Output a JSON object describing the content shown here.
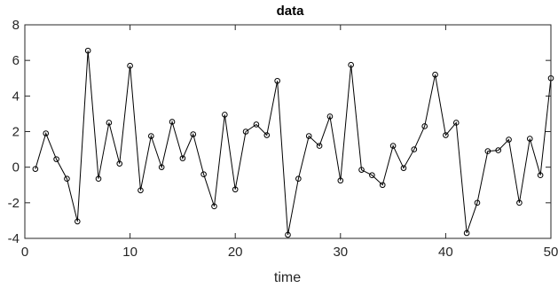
{
  "chart_data": {
    "type": "line",
    "title": "data",
    "xlabel": "time",
    "ylabel": "",
    "xlim": [
      0,
      50
    ],
    "ylim": [
      -4,
      8
    ],
    "xticks": [
      0,
      10,
      20,
      30,
      40,
      50
    ],
    "yticks": [
      -4,
      -2,
      0,
      2,
      4,
      6,
      8
    ],
    "grid": false,
    "legend": "none",
    "colors": {
      "line": "#000000",
      "marker": "#000000",
      "axis": "#262626",
      "background": "#ffffff"
    },
    "marker": "circle-open",
    "series": [
      {
        "x": [
          1,
          2,
          3,
          4,
          5,
          6,
          7,
          8,
          9,
          10,
          11,
          12,
          13,
          14,
          15,
          16,
          17,
          18,
          19,
          20,
          21,
          22,
          23,
          24,
          25,
          26,
          27,
          28,
          29,
          30,
          31,
          32,
          33,
          34,
          35,
          36,
          37,
          38,
          39,
          40,
          41,
          42,
          43,
          44,
          45,
          46,
          47,
          48,
          49,
          50
        ],
        "values": [
          -0.1,
          1.9,
          0.45,
          -0.65,
          -3.05,
          6.55,
          -0.65,
          2.5,
          0.2,
          5.7,
          -1.3,
          1.75,
          0.0,
          2.55,
          0.5,
          1.85,
          -0.4,
          -2.2,
          2.95,
          -1.25,
          2.0,
          2.4,
          1.8,
          4.85,
          -3.8,
          -0.65,
          1.75,
          1.2,
          2.85,
          -0.75,
          5.75,
          -0.15,
          -0.45,
          -1.0,
          1.2,
          -0.05,
          1.0,
          2.3,
          5.2,
          1.8,
          2.5,
          -3.7,
          -2.0,
          0.9,
          0.95,
          1.55,
          -2.0,
          1.6,
          -0.45,
          5.0
        ]
      }
    ]
  }
}
